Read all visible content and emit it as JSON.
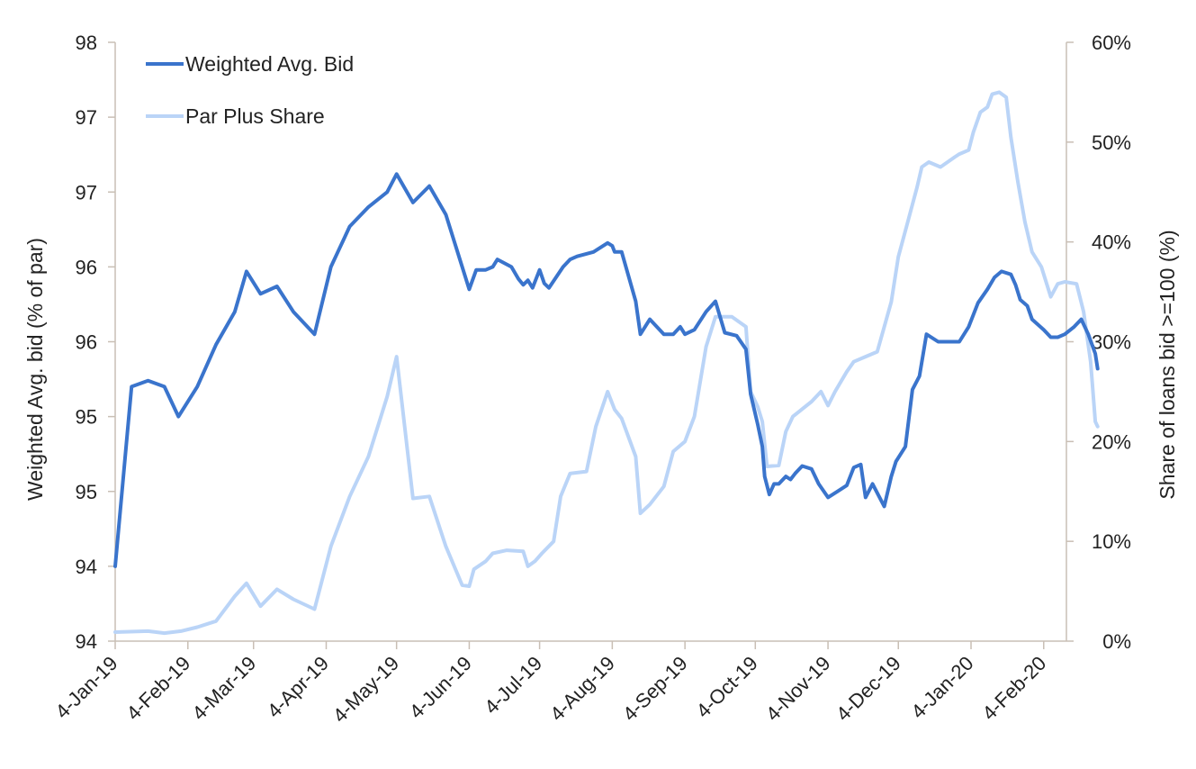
{
  "chart_data": {
    "type": "line",
    "title": "",
    "xlabel": "",
    "ylabel_left": "Weighted Avg. bid (% of par)",
    "ylabel_right": "Share of loans bid >=100 (%)",
    "x_ticks": [
      "4-Jan-19",
      "4-Feb-19",
      "4-Mar-19",
      "4-Apr-19",
      "4-May-19",
      "4-Jun-19",
      "4-Jul-19",
      "4-Aug-19",
      "4-Sep-19",
      "4-Oct-19",
      "4-Nov-19",
      "4-Dec-19",
      "4-Jan-20",
      "4-Feb-20"
    ],
    "x_range": [
      "2019-01-04",
      "2020-02-27"
    ],
    "left_axis": {
      "ylim": [
        94,
        98
      ],
      "tick_values": [
        94,
        94.5,
        95,
        95.5,
        96,
        96.5,
        97,
        97.5,
        98
      ],
      "tick_labels": [
        "94",
        "94",
        "95",
        "95",
        "96",
        "96",
        "97",
        "97",
        "98"
      ]
    },
    "right_axis": {
      "ylim": [
        0,
        60
      ],
      "tick_values": [
        0,
        10,
        20,
        30,
        40,
        50,
        60
      ],
      "tick_labels": [
        "0%",
        "10%",
        "20%",
        "30%",
        "40%",
        "50%",
        "60%"
      ]
    },
    "legend_position": "top-left",
    "series": [
      {
        "name": "Weighted Avg. Bid",
        "axis": "left",
        "color": "#3a74cc",
        "points": [
          [
            "2019-01-04",
            94.5
          ],
          [
            "2019-01-11",
            95.7
          ],
          [
            "2019-01-18",
            95.74
          ],
          [
            "2019-01-25",
            95.7
          ],
          [
            "2019-01-31",
            95.5
          ],
          [
            "2019-02-08",
            95.7
          ],
          [
            "2019-02-16",
            95.98
          ],
          [
            "2019-02-24",
            96.2
          ],
          [
            "2019-03-01",
            96.47
          ],
          [
            "2019-03-07",
            96.32
          ],
          [
            "2019-03-14",
            96.37
          ],
          [
            "2019-03-21",
            96.2
          ],
          [
            "2019-03-30",
            96.05
          ],
          [
            "2019-04-06",
            96.5
          ],
          [
            "2019-04-14",
            96.77
          ],
          [
            "2019-04-22",
            96.9
          ],
          [
            "2019-04-30",
            97
          ],
          [
            "2019-05-04",
            97.12
          ],
          [
            "2019-05-11",
            96.93
          ],
          [
            "2019-05-18",
            97.04
          ],
          [
            "2019-05-25",
            96.85
          ],
          [
            "2019-06-01",
            96.5
          ],
          [
            "2019-06-04",
            96.35
          ],
          [
            "2019-06-07",
            96.48
          ],
          [
            "2019-06-11",
            96.48
          ],
          [
            "2019-06-14",
            96.5
          ],
          [
            "2019-06-16",
            96.55
          ],
          [
            "2019-06-22",
            96.5
          ],
          [
            "2019-06-25",
            96.42
          ],
          [
            "2019-06-27",
            96.38
          ],
          [
            "2019-06-29",
            96.41
          ],
          [
            "2019-07-01",
            96.36
          ],
          [
            "2019-07-04",
            96.48
          ],
          [
            "2019-07-06",
            96.39
          ],
          [
            "2019-07-08",
            96.36
          ],
          [
            "2019-07-14",
            96.5
          ],
          [
            "2019-07-17",
            96.55
          ],
          [
            "2019-07-20",
            96.57
          ],
          [
            "2019-07-27",
            96.6
          ],
          [
            "2019-08-02",
            96.66
          ],
          [
            "2019-08-04",
            96.64
          ],
          [
            "2019-08-05",
            96.6
          ],
          [
            "2019-08-08",
            96.6
          ],
          [
            "2019-08-14",
            96.27
          ],
          [
            "2019-08-16",
            96.05
          ],
          [
            "2019-08-20",
            96.15
          ],
          [
            "2019-08-26",
            96.05
          ],
          [
            "2019-08-30",
            96.05
          ],
          [
            "2019-09-02",
            96.1
          ],
          [
            "2019-09-04",
            96.05
          ],
          [
            "2019-09-08",
            96.08
          ],
          [
            "2019-09-13",
            96.2
          ],
          [
            "2019-09-17",
            96.27
          ],
          [
            "2019-09-21",
            96.06
          ],
          [
            "2019-09-26",
            96.04
          ],
          [
            "2019-09-30",
            95.95
          ],
          [
            "2019-10-02",
            95.65
          ],
          [
            "2019-10-05",
            95.45
          ],
          [
            "2019-10-07",
            95.3
          ],
          [
            "2019-10-08",
            95.1
          ],
          [
            "2019-10-10",
            94.98
          ],
          [
            "2019-10-12",
            95.05
          ],
          [
            "2019-10-14",
            95.05
          ],
          [
            "2019-10-17",
            95.1
          ],
          [
            "2019-10-19",
            95.08
          ],
          [
            "2019-10-21",
            95.12
          ],
          [
            "2019-10-24",
            95.17
          ],
          [
            "2019-10-28",
            95.15
          ],
          [
            "2019-10-31",
            95.05
          ],
          [
            "2019-11-04",
            94.96
          ],
          [
            "2019-11-08",
            95.0
          ],
          [
            "2019-11-12",
            95.04
          ],
          [
            "2019-11-15",
            95.16
          ],
          [
            "2019-11-18",
            95.18
          ],
          [
            "2019-11-20",
            94.96
          ],
          [
            "2019-11-23",
            95.05
          ],
          [
            "2019-11-28",
            94.9
          ],
          [
            "2019-12-01",
            95.1
          ],
          [
            "2019-12-03",
            95.2
          ],
          [
            "2019-12-07",
            95.3
          ],
          [
            "2019-12-10",
            95.68
          ],
          [
            "2019-12-13",
            95.77
          ],
          [
            "2019-12-16",
            96.05
          ],
          [
            "2019-12-21",
            96.0
          ],
          [
            "2019-12-30",
            96.0
          ],
          [
            "2020-01-03",
            96.1
          ],
          [
            "2020-01-07",
            96.26
          ],
          [
            "2020-01-11",
            96.35
          ],
          [
            "2020-01-14",
            96.43
          ],
          [
            "2020-01-17",
            96.47
          ],
          [
            "2020-01-21",
            96.45
          ],
          [
            "2020-01-23",
            96.38
          ],
          [
            "2020-01-25",
            96.28
          ],
          [
            "2020-01-28",
            96.24
          ],
          [
            "2020-01-30",
            96.15
          ],
          [
            "2020-02-04",
            96.08
          ],
          [
            "2020-02-07",
            96.03
          ],
          [
            "2020-02-10",
            96.03
          ],
          [
            "2020-02-13",
            96.05
          ],
          [
            "2020-02-17",
            96.1
          ],
          [
            "2020-02-20",
            96.15
          ],
          [
            "2020-02-23",
            96.05
          ],
          [
            "2020-02-26",
            95.92
          ],
          [
            "2020-02-27",
            95.82
          ]
        ]
      },
      {
        "name": "Par Plus Share",
        "axis": "right",
        "color": "#bad4f7",
        "points": [
          [
            "2019-01-04",
            0.9
          ],
          [
            "2019-01-18",
            1.0
          ],
          [
            "2019-01-25",
            0.8
          ],
          [
            "2019-02-01",
            1.0
          ],
          [
            "2019-02-08",
            1.4
          ],
          [
            "2019-02-16",
            2.0
          ],
          [
            "2019-02-24",
            4.5
          ],
          [
            "2019-03-01",
            5.8
          ],
          [
            "2019-03-07",
            3.5
          ],
          [
            "2019-03-14",
            5.2
          ],
          [
            "2019-03-21",
            4.2
          ],
          [
            "2019-03-30",
            3.2
          ],
          [
            "2019-04-06",
            9.5
          ],
          [
            "2019-04-14",
            14.5
          ],
          [
            "2019-04-22",
            18.5
          ],
          [
            "2019-04-30",
            24.5
          ],
          [
            "2019-05-04",
            28.5
          ],
          [
            "2019-05-11",
            14.3
          ],
          [
            "2019-05-18",
            14.5
          ],
          [
            "2019-05-25",
            9.5
          ],
          [
            "2019-06-01",
            5.6
          ],
          [
            "2019-06-04",
            5.5
          ],
          [
            "2019-06-06",
            7.2
          ],
          [
            "2019-06-11",
            8.0
          ],
          [
            "2019-06-14",
            8.8
          ],
          [
            "2019-06-20",
            9.1
          ],
          [
            "2019-06-27",
            9.0
          ],
          [
            "2019-06-29",
            7.5
          ],
          [
            "2019-07-02",
            8.0
          ],
          [
            "2019-07-05",
            8.8
          ],
          [
            "2019-07-10",
            10.0
          ],
          [
            "2019-07-13",
            14.5
          ],
          [
            "2019-07-17",
            16.8
          ],
          [
            "2019-07-24",
            17.0
          ],
          [
            "2019-07-28",
            21.5
          ],
          [
            "2019-08-02",
            25.0
          ],
          [
            "2019-08-05",
            23.2
          ],
          [
            "2019-08-08",
            22.3
          ],
          [
            "2019-08-14",
            18.5
          ],
          [
            "2019-08-16",
            12.8
          ],
          [
            "2019-08-20",
            13.7
          ],
          [
            "2019-08-26",
            15.5
          ],
          [
            "2019-08-30",
            19.0
          ],
          [
            "2019-09-04",
            20.0
          ],
          [
            "2019-09-08",
            22.5
          ],
          [
            "2019-09-13",
            29.5
          ],
          [
            "2019-09-17",
            32.5
          ],
          [
            "2019-09-24",
            32.5
          ],
          [
            "2019-09-30",
            31.5
          ],
          [
            "2019-10-02",
            25.0
          ],
          [
            "2019-10-05",
            23.5
          ],
          [
            "2019-10-07",
            22.0
          ],
          [
            "2019-10-09",
            17.5
          ],
          [
            "2019-10-14",
            17.6
          ],
          [
            "2019-10-17",
            21.0
          ],
          [
            "2019-10-20",
            22.5
          ],
          [
            "2019-10-28",
            24.0
          ],
          [
            "2019-11-01",
            25.0
          ],
          [
            "2019-11-04",
            23.6
          ],
          [
            "2019-11-07",
            25.0
          ],
          [
            "2019-11-12",
            27.0
          ],
          [
            "2019-11-15",
            28.0
          ],
          [
            "2019-11-20",
            28.5
          ],
          [
            "2019-11-25",
            29.0
          ],
          [
            "2019-11-28",
            31.5
          ],
          [
            "2019-12-01",
            34.0
          ],
          [
            "2019-12-04",
            38.5
          ],
          [
            "2019-12-08",
            42.0
          ],
          [
            "2019-12-12",
            45.5
          ],
          [
            "2019-12-14",
            47.5
          ],
          [
            "2019-12-17",
            48.0
          ],
          [
            "2019-12-22",
            47.5
          ],
          [
            "2019-12-28",
            48.5
          ],
          [
            "2019-12-30",
            48.8
          ],
          [
            "2020-01-03",
            49.2
          ],
          [
            "2020-01-05",
            51.0
          ],
          [
            "2020-01-08",
            53.0
          ],
          [
            "2020-01-11",
            53.5
          ],
          [
            "2020-01-13",
            54.8
          ],
          [
            "2020-01-16",
            55.0
          ],
          [
            "2020-01-19",
            54.5
          ],
          [
            "2020-01-21",
            50.5
          ],
          [
            "2020-01-24",
            46.0
          ],
          [
            "2020-01-27",
            42.0
          ],
          [
            "2020-01-30",
            39.0
          ],
          [
            "2020-02-03",
            37.5
          ],
          [
            "2020-02-07",
            34.5
          ],
          [
            "2020-02-10",
            35.8
          ],
          [
            "2020-02-13",
            36.0
          ],
          [
            "2020-02-18",
            35.8
          ],
          [
            "2020-02-21",
            33.0
          ],
          [
            "2020-02-24",
            28.0
          ],
          [
            "2020-02-26",
            22.0
          ],
          [
            "2020-02-27",
            21.5
          ]
        ]
      }
    ]
  }
}
